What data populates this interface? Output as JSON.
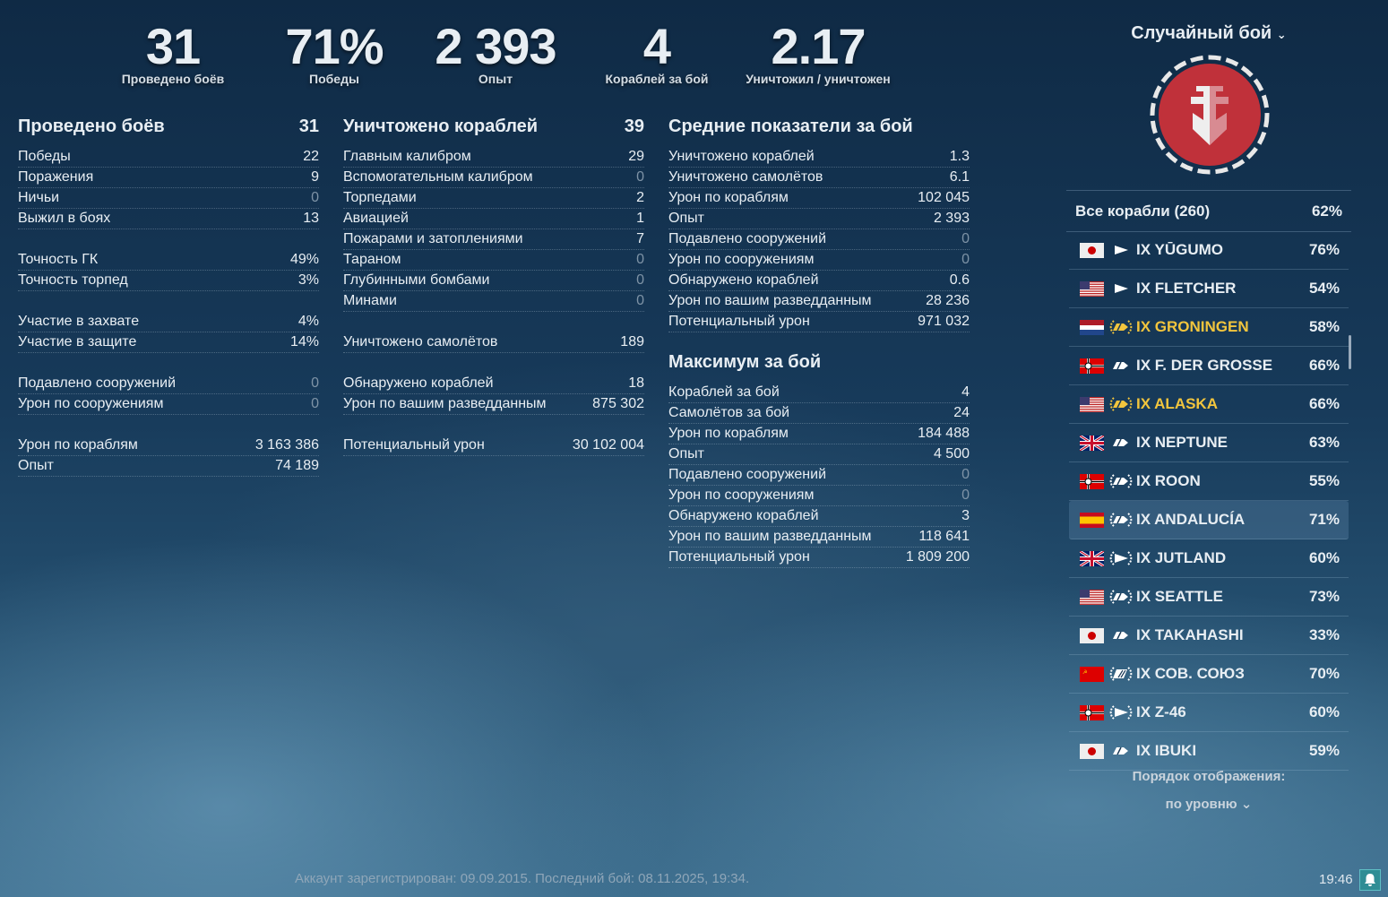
{
  "top_stats": [
    {
      "value": "31",
      "label": "Проведено боёв"
    },
    {
      "value": "71%",
      "label": "Победы"
    },
    {
      "value": "2 393",
      "label": "Опыт"
    },
    {
      "value": "4",
      "label": "Кораблей за бой"
    },
    {
      "value": "2.17",
      "label": "Уничтожил / уничтожен"
    }
  ],
  "columns": [
    {
      "sections": [
        {
          "title": "Проведено боёв",
          "value": "31",
          "groups": [
            [
              [
                "Победы",
                "22"
              ],
              [
                "Поражения",
                "9"
              ],
              [
                "Ничьи",
                "0"
              ],
              [
                "Выжил в боях",
                "13"
              ]
            ],
            [
              [
                "Точность ГК",
                "49%"
              ],
              [
                "Точность торпед",
                "3%"
              ]
            ],
            [
              [
                "Участие в захвате",
                "4%"
              ],
              [
                "Участие в защите",
                "14%"
              ]
            ],
            [
              [
                "Подавлено сооружений",
                "0"
              ],
              [
                "Урон по сооружениям",
                "0"
              ]
            ],
            [
              [
                "Урон по кораблям",
                "3 163 386"
              ],
              [
                "Опыт",
                "74 189"
              ]
            ]
          ]
        }
      ]
    },
    {
      "sections": [
        {
          "title": "Уничтожено кораблей",
          "value": "39",
          "groups": [
            [
              [
                "Главным калибром",
                "29"
              ],
              [
                "Вспомогательным калибром",
                "0"
              ],
              [
                "Торпедами",
                "2"
              ],
              [
                "Авиацией",
                "1"
              ],
              [
                "Пожарами и затоплениями",
                "7"
              ],
              [
                "Тараном",
                "0"
              ],
              [
                "Глубинными бомбами",
                "0"
              ],
              [
                "Минами",
                "0"
              ]
            ],
            [
              [
                "Уничтожено самолётов",
                "189"
              ]
            ],
            [
              [
                "Обнаружено кораблей",
                "18"
              ],
              [
                "Урон по вашим разведданным",
                "875 302"
              ]
            ],
            [
              [
                "Потенциальный урон",
                "30 102 004"
              ]
            ]
          ]
        }
      ]
    },
    {
      "sections": [
        {
          "title": "Средние показатели за бой",
          "value": "",
          "groups": [
            [
              [
                "Уничтожено кораблей",
                "1.3"
              ],
              [
                "Уничтожено самолётов",
                "6.1"
              ],
              [
                "Урон по кораблям",
                "102 045"
              ],
              [
                "Опыт",
                "2 393"
              ],
              [
                "Подавлено сооружений",
                "0"
              ],
              [
                "Урон по сооружениям",
                "0"
              ],
              [
                "Обнаружено кораблей",
                "0.6"
              ],
              [
                "Урон по вашим разведданным",
                "28 236"
              ],
              [
                "Потенциальный урон",
                "971 032"
              ]
            ]
          ]
        },
        {
          "title": "Максимум за бой",
          "value": "",
          "groups": [
            [
              [
                "Кораблей за бой",
                "4"
              ],
              [
                "Самолётов за бой",
                "24"
              ],
              [
                "Урон по кораблям",
                "184 488"
              ],
              [
                "Опыт",
                "4 500"
              ],
              [
                "Подавлено сооружений",
                "0"
              ],
              [
                "Урон по сооружениям",
                "0"
              ],
              [
                "Обнаружено кораблей",
                "3"
              ],
              [
                "Урон по вашим разведданным",
                "118 641"
              ],
              [
                "Потенциальный урон",
                "1 809 200"
              ]
            ]
          ]
        }
      ]
    }
  ],
  "sidebar": {
    "mode": "Случайный бой",
    "all_ships": {
      "label": "Все корабли (260)",
      "value": "62%"
    },
    "ships": [
      {
        "flag": "japan",
        "type": "destroyer",
        "name": "IX YŪGUMO",
        "winrate": "76%"
      },
      {
        "flag": "usa",
        "type": "destroyer",
        "name": "IX FLETCHER",
        "winrate": "54%"
      },
      {
        "flag": "netherlands",
        "type": "cruiser-premium",
        "name": "IX GRONINGEN",
        "winrate": "58%",
        "premium": true
      },
      {
        "flag": "germany",
        "type": "cruiser",
        "name": "IX F. DER GROSSE",
        "winrate": "66%"
      },
      {
        "flag": "usa",
        "type": "cruiser-premium",
        "name": "IX ALASKA",
        "winrate": "66%",
        "premium": true
      },
      {
        "flag": "uk",
        "type": "cruiser",
        "name": "IX NEPTUNE",
        "winrate": "63%"
      },
      {
        "flag": "germany",
        "type": "cruiser-special",
        "name": "IX ROON",
        "winrate": "55%"
      },
      {
        "flag": "spain",
        "type": "cruiser-special",
        "name": "IX ANDALUCÍA",
        "winrate": "71%",
        "selected": true
      },
      {
        "flag": "uk",
        "type": "destroyer-special",
        "name": "IX JUTLAND",
        "winrate": "60%"
      },
      {
        "flag": "usa",
        "type": "cruiser-special",
        "name": "IX SEATTLE",
        "winrate": "73%"
      },
      {
        "flag": "japan",
        "type": "cruiser",
        "name": "IX TAKAHASHI",
        "winrate": "33%"
      },
      {
        "flag": "ussr",
        "type": "battleship-special",
        "name": "IX СОВ. СОЮЗ",
        "winrate": "70%"
      },
      {
        "flag": "germany",
        "type": "destroyer-special",
        "name": "IX Z-46",
        "winrate": "60%"
      },
      {
        "flag": "japan",
        "type": "cruiser",
        "name": "IX IBUKI",
        "winrate": "59%"
      }
    ],
    "order_label": "Порядок отображения:",
    "order_value": "по уровню"
  },
  "footer": {
    "account": "Аккаунт зарегистрирован: 09.09.2015. Последний бой: 08.11.2025, 19:34.",
    "clock": "19:46"
  },
  "colors": {
    "premium": "#f2c53d",
    "emblem": "#c0313a"
  }
}
